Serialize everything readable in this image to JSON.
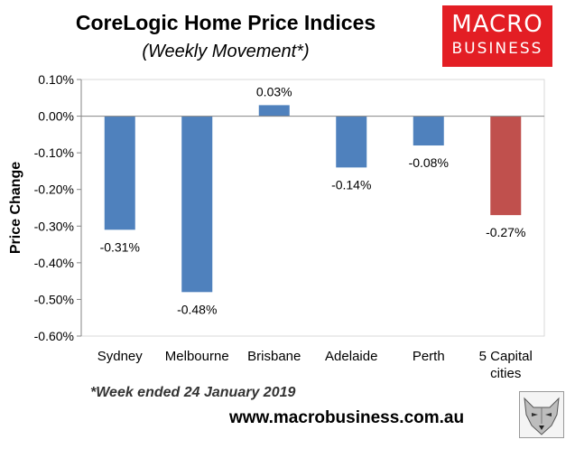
{
  "header": {
    "title": "CoreLogic Home Price Indices",
    "subtitle": "(Weekly Movement*)"
  },
  "logo": {
    "line1": "MACRO",
    "line2": "BUSINESS"
  },
  "footer": {
    "footnote": "*Week ended 24 January 2019",
    "website": "www.macrobusiness.com.au"
  },
  "colors": {
    "bar": "#4f81bd",
    "highlight_bar": "#c0504d",
    "logo_red": "#e31e24",
    "grid": "#d9d9d9",
    "plot_background": "#ffffff"
  },
  "chart_data": {
    "type": "bar",
    "title": "CoreLogic Home Price Indices",
    "subtitle": "(Weekly Movement*)",
    "xlabel": "",
    "ylabel": "Price Change",
    "categories": [
      "Sydney",
      "Melbourne",
      "Brisbane",
      "Adelaide",
      "Perth",
      "5 Capital cities"
    ],
    "values": [
      -0.31,
      -0.48,
      0.03,
      -0.14,
      -0.08,
      -0.27
    ],
    "data_labels": [
      "-0.31%",
      "-0.48%",
      "0.03%",
      "-0.14%",
      "-0.08%",
      "-0.27%"
    ],
    "highlight_category": "5 Capital cities",
    "ylim": [
      -0.6,
      0.1
    ],
    "yticks": [
      0.1,
      0.0,
      -0.1,
      -0.2,
      -0.3,
      -0.4,
      -0.5,
      -0.6
    ],
    "ytick_labels": [
      "0.10%",
      "0.00%",
      "-0.10%",
      "-0.20%",
      "-0.30%",
      "-0.40%",
      "-0.50%",
      "-0.60%"
    ],
    "grid": false,
    "legend": "none"
  }
}
